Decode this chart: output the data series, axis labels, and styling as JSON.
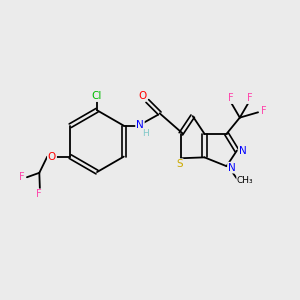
{
  "background_color": "#EBEBEB",
  "bond_color": "#000000",
  "atom_colors": {
    "Cl": "#00BB00",
    "O": "#FF0000",
    "F": "#FF44AA",
    "N": "#0000FF",
    "S": "#CCAA00",
    "H_gray": "#7EC8C8"
  },
  "figsize": [
    3.0,
    3.0
  ],
  "dpi": 100
}
